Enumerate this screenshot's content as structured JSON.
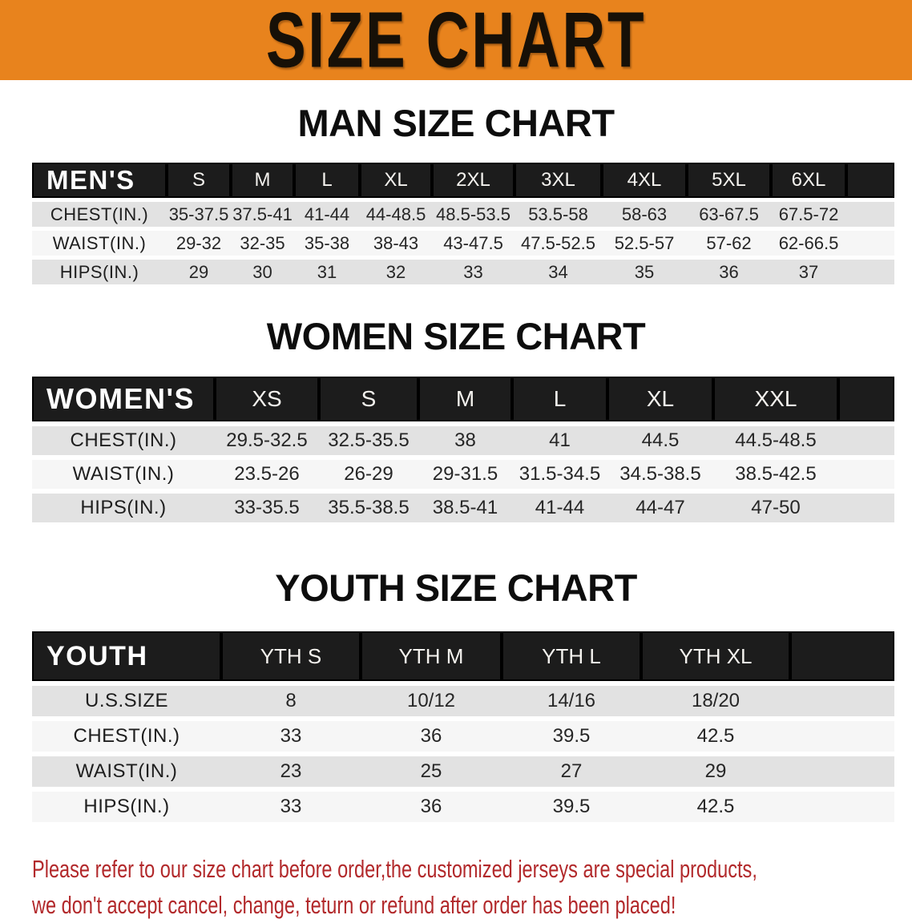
{
  "banner": {
    "title": "SIZE CHART"
  },
  "sections": [
    {
      "heading": "MAN SIZE CHART",
      "table": {
        "header_label": "MEN'S",
        "columns": [
          "S",
          "M",
          "L",
          "XL",
          "2XL",
          "3XL",
          "4XL",
          "5XL",
          "6XL"
        ],
        "rows": [
          {
            "label": "CHEST(IN.)",
            "values": [
              "35-37.5",
              "37.5-41",
              "41-44",
              "44-48.5",
              "48.5-53.5",
              "53.5-58",
              "58-63",
              "63-67.5",
              "67.5-72"
            ]
          },
          {
            "label": "WAIST(IN.)",
            "values": [
              "29-32",
              "32-35",
              "35-38",
              "38-43",
              "43-47.5",
              "47.5-52.5",
              "52.5-57",
              "57-62",
              "62-66.5"
            ]
          },
          {
            "label": "HIPS(IN.)",
            "values": [
              "29",
              "30",
              "31",
              "32",
              "33",
              "34",
              "35",
              "36",
              "37"
            ]
          }
        ]
      }
    },
    {
      "heading": "WOMEN SIZE CHART",
      "table": {
        "header_label": "WOMEN'S",
        "columns": [
          "XS",
          "S",
          "M",
          "L",
          "XL",
          "XXL"
        ],
        "rows": [
          {
            "label": "CHEST(IN.)",
            "values": [
              "29.5-32.5",
              "32.5-35.5",
              "38",
              "41",
              "44.5",
              "44.5-48.5"
            ]
          },
          {
            "label": "WAIST(IN.)",
            "values": [
              "23.5-26",
              "26-29",
              "29-31.5",
              "31.5-34.5",
              "34.5-38.5",
              "38.5-42.5"
            ]
          },
          {
            "label": "HIPS(IN.)",
            "values": [
              "33-35.5",
              "35.5-38.5",
              "38.5-41",
              "41-44",
              "44-47",
              "47-50"
            ]
          }
        ]
      }
    },
    {
      "heading": "YOUTH SIZE CHART",
      "table": {
        "header_label": "YOUTH",
        "columns": [
          "YTH S",
          "YTH M",
          "YTH L",
          "YTH XL"
        ],
        "rows": [
          {
            "label": "U.S.SIZE",
            "values": [
              "8",
              "10/12",
              "14/16",
              "18/20"
            ]
          },
          {
            "label": "CHEST(IN.)",
            "values": [
              "33",
              "36",
              "39.5",
              "42.5"
            ]
          },
          {
            "label": "WAIST(IN.)",
            "values": [
              "23",
              "25",
              "27",
              "29"
            ]
          },
          {
            "label": "HIPS(IN.)",
            "values": [
              "33",
              "36",
              "39.5",
              "42.5"
            ]
          }
        ]
      }
    }
  ],
  "footer": {
    "lines": [
      "Please refer to our size chart before order,the customized jerseys are special products,",
      "we don't accept cancel, change, teturn or refund after order has been placed!"
    ]
  },
  "colors": {
    "banner_orange": "#E8831D",
    "header_bar_black": "#1C1C1C",
    "row_gray": "#E2E2E2",
    "row_white": "#F6F6F6",
    "disclaimer_red": "#B2292B"
  }
}
